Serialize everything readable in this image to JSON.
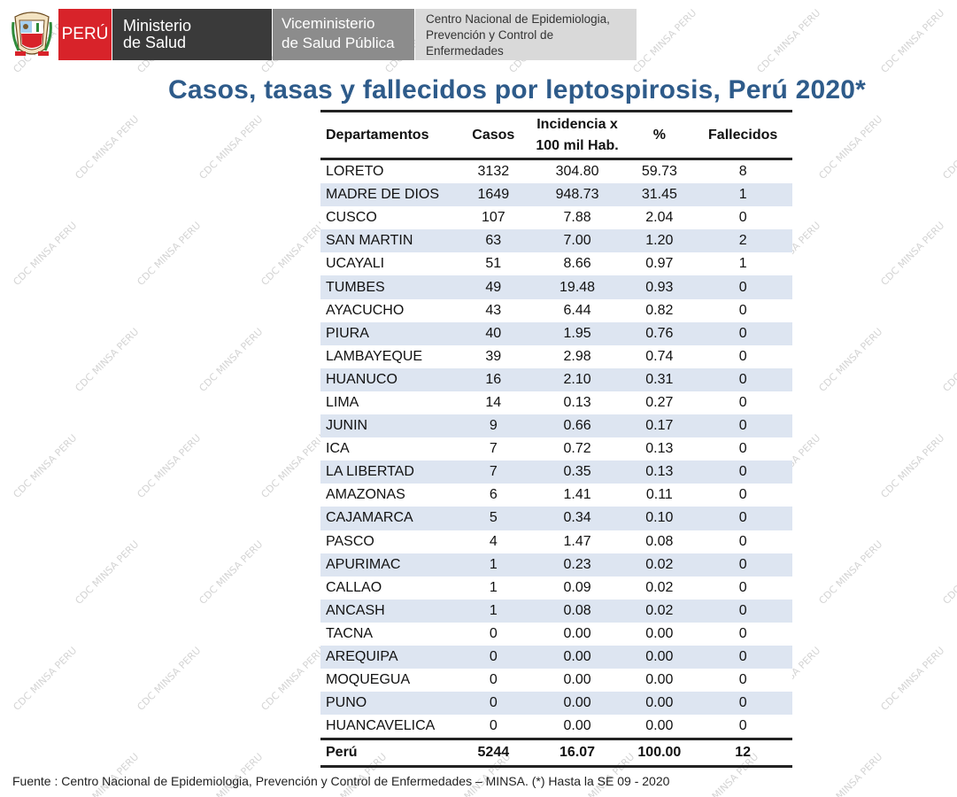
{
  "header": {
    "peru": "PERÚ",
    "ministerio": [
      "Ministerio",
      "de Salud"
    ],
    "viceministerio": [
      "Viceministerio",
      "de Salud Pública"
    ],
    "cdc": [
      "Centro Nacional de Epidemiologia,",
      "Prevención y Control de",
      "Enfermedades"
    ]
  },
  "watermark": "CDC MINSA PERU",
  "title": "Casos, tasas y fallecidos por leptospirosis, Perú 2020*",
  "table": {
    "headers": {
      "departamentos": "Departamentos",
      "casos": "Casos",
      "incidencia": [
        "Incidencia x",
        "100 mil Hab."
      ],
      "porcentaje": "%",
      "fallecidos": "Fallecidos"
    },
    "rows": [
      [
        "LORETO",
        "3132",
        "304.80",
        "59.73",
        "8"
      ],
      [
        "MADRE DE DIOS",
        "1649",
        "948.73",
        "31.45",
        "1"
      ],
      [
        "CUSCO",
        "107",
        "7.88",
        "2.04",
        "0"
      ],
      [
        "SAN MARTIN",
        "63",
        "7.00",
        "1.20",
        "2"
      ],
      [
        "UCAYALI",
        "51",
        "8.66",
        "0.97",
        "1"
      ],
      [
        "TUMBES",
        "49",
        "19.48",
        "0.93",
        "0"
      ],
      [
        "AYACUCHO",
        "43",
        "6.44",
        "0.82",
        "0"
      ],
      [
        "PIURA",
        "40",
        "1.95",
        "0.76",
        "0"
      ],
      [
        "LAMBAYEQUE",
        "39",
        "2.98",
        "0.74",
        "0"
      ],
      [
        "HUANUCO",
        "16",
        "2.10",
        "0.31",
        "0"
      ],
      [
        "LIMA",
        "14",
        "0.13",
        "0.27",
        "0"
      ],
      [
        "JUNIN",
        "9",
        "0.66",
        "0.17",
        "0"
      ],
      [
        "ICA",
        "7",
        "0.72",
        "0.13",
        "0"
      ],
      [
        "LA LIBERTAD",
        "7",
        "0.35",
        "0.13",
        "0"
      ],
      [
        "AMAZONAS",
        "6",
        "1.41",
        "0.11",
        "0"
      ],
      [
        "CAJAMARCA",
        "5",
        "0.34",
        "0.10",
        "0"
      ],
      [
        "PASCO",
        "4",
        "1.47",
        "0.08",
        "0"
      ],
      [
        "APURIMAC",
        "1",
        "0.23",
        "0.02",
        "0"
      ],
      [
        "CALLAO",
        "1",
        "0.09",
        "0.02",
        "0"
      ],
      [
        "ANCASH",
        "1",
        "0.08",
        "0.02",
        "0"
      ],
      [
        "TACNA",
        "0",
        "0.00",
        "0.00",
        "0"
      ],
      [
        "AREQUIPA",
        "0",
        "0.00",
        "0.00",
        "0"
      ],
      [
        "MOQUEGUA",
        "0",
        "0.00",
        "0.00",
        "0"
      ],
      [
        "PUNO",
        "0",
        "0.00",
        "0.00",
        "0"
      ],
      [
        "HUANCAVELICA",
        "0",
        "0.00",
        "0.00",
        "0"
      ]
    ],
    "total": [
      "Perú",
      "5244",
      "16.07",
      "100.00",
      "12"
    ]
  },
  "source": "Fuente : Centro Nacional de Epidemiologia, Prevención y Control de Enfermedades – MINSA.  (*) Hasta la SE 09 - 2020",
  "colors": {
    "title": "#2e5b8a",
    "stripe": "#dde5f1",
    "peru_red": "#d8232a",
    "minsa_dark": "#3a3a3a",
    "vice_gray": "#8c8c8c",
    "cdc_light": "#d9d9d9"
  }
}
